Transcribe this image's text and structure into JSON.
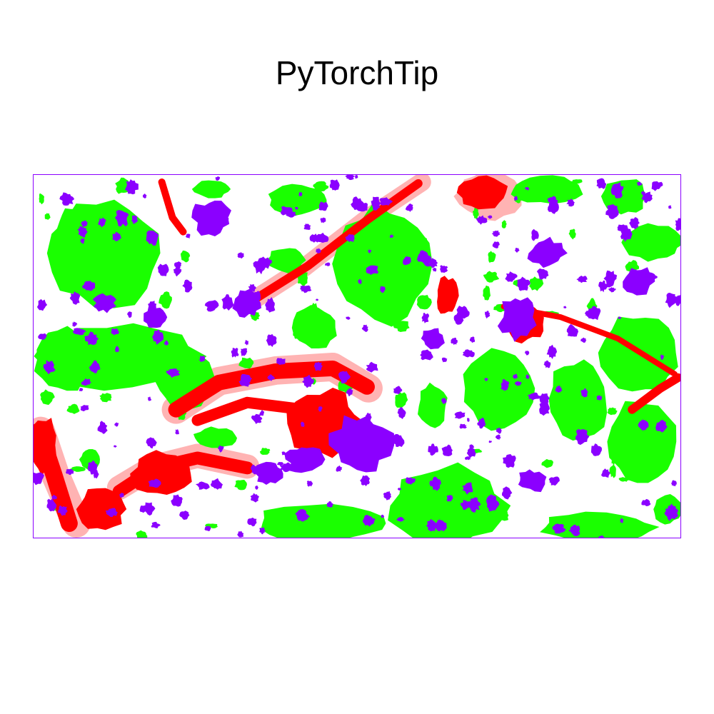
{
  "title": "PyTorchTip",
  "segmentation": {
    "palette": {
      "background": "#ffffff",
      "green": "#1aff00",
      "red": "#ff0000",
      "pink": "#ffb3b3",
      "purple": "#8b00ff"
    }
  }
}
